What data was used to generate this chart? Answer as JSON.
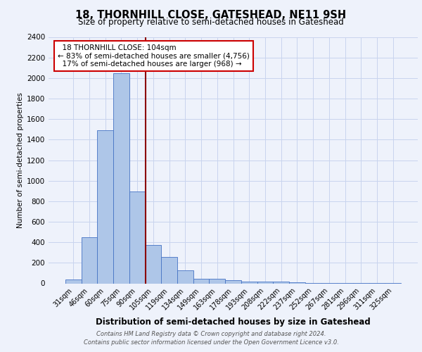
{
  "title_line1": "18, THORNHILL CLOSE, GATESHEAD, NE11 9SH",
  "title_line2": "Size of property relative to semi-detached houses in Gateshead",
  "xlabel": "Distribution of semi-detached houses by size in Gateshead",
  "ylabel": "Number of semi-detached properties",
  "footer_line1": "Contains HM Land Registry data © Crown copyright and database right 2024.",
  "footer_line2": "Contains public sector information licensed under the Open Government Licence v3.0.",
  "categories": [
    "31sqm",
    "46sqm",
    "60sqm",
    "75sqm",
    "90sqm",
    "105sqm",
    "119sqm",
    "134sqm",
    "149sqm",
    "163sqm",
    "178sqm",
    "193sqm",
    "208sqm",
    "222sqm",
    "237sqm",
    "252sqm",
    "267sqm",
    "281sqm",
    "296sqm",
    "311sqm",
    "325sqm"
  ],
  "values": [
    40,
    450,
    1490,
    2050,
    895,
    375,
    255,
    130,
    45,
    45,
    30,
    20,
    20,
    15,
    10,
    5,
    5,
    3,
    3,
    2,
    2
  ],
  "bar_color": "#aec6e8",
  "bar_edge_color": "#4472c4",
  "ylim": [
    0,
    2400
  ],
  "yticks": [
    0,
    200,
    400,
    600,
    800,
    1000,
    1200,
    1400,
    1600,
    1800,
    2000,
    2200,
    2400
  ],
  "property_label": "18 THORNHILL CLOSE: 104sqm",
  "pct_smaller": 83,
  "pct_smaller_count": "4,756",
  "pct_larger": 17,
  "pct_larger_count": "968",
  "annotation_box_color": "#ffffff",
  "annotation_border_color": "#cc0000",
  "bg_color": "#eef2fb",
  "grid_color": "#c8d4ee"
}
